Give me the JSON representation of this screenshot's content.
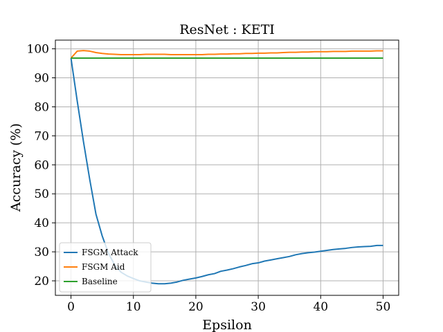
{
  "chart_data": {
    "type": "line",
    "title": "ResNet : KETI",
    "xlabel": "Epsilon",
    "ylabel": "Accuracy (%)",
    "xlim": [
      -2.5,
      52.5
    ],
    "ylim": [
      15,
      103
    ],
    "xticks": [
      0,
      10,
      20,
      30,
      40,
      50
    ],
    "yticks": [
      20,
      30,
      40,
      50,
      60,
      70,
      80,
      90,
      100
    ],
    "grid": true,
    "legend_position": "lower-left",
    "series": [
      {
        "name": "FSGM Attack",
        "color": "#1f77b4",
        "x": [
          0,
          1,
          2,
          3,
          4,
          5,
          6,
          7,
          8,
          9,
          10,
          11,
          12,
          13,
          14,
          15,
          16,
          17,
          18,
          19,
          20,
          21,
          22,
          23,
          24,
          25,
          26,
          27,
          28,
          29,
          30,
          31,
          32,
          33,
          34,
          35,
          36,
          37,
          38,
          39,
          40,
          41,
          42,
          43,
          44,
          45,
          46,
          47,
          48,
          49,
          50
        ],
        "y": [
          96.8,
          82,
          68,
          55,
          43,
          35.5,
          29.5,
          25.5,
          23,
          21.7,
          20.8,
          20,
          19.6,
          19.2,
          19.0,
          19.0,
          19.2,
          19.6,
          20.2,
          20.6,
          21.0,
          21.5,
          22.1,
          22.5,
          23.3,
          23.7,
          24.2,
          24.8,
          25.3,
          25.9,
          26.2,
          26.8,
          27.2,
          27.6,
          28.0,
          28.4,
          29.0,
          29.4,
          29.7,
          29.9,
          30.2,
          30.5,
          30.8,
          31.0,
          31.2,
          31.5,
          31.7,
          31.8,
          31.9,
          32.2,
          32.2
        ]
      },
      {
        "name": "FSGM Aid",
        "color": "#ff7f0e",
        "x": [
          0,
          1,
          2,
          3,
          4,
          5,
          6,
          7,
          8,
          9,
          10,
          11,
          12,
          13,
          14,
          15,
          16,
          17,
          18,
          19,
          20,
          21,
          22,
          23,
          24,
          25,
          26,
          27,
          28,
          29,
          30,
          31,
          32,
          33,
          34,
          35,
          36,
          37,
          38,
          39,
          40,
          41,
          42,
          43,
          44,
          45,
          46,
          47,
          48,
          49,
          50
        ],
        "y": [
          96.8,
          99.2,
          99.4,
          99.2,
          98.7,
          98.4,
          98.2,
          98.1,
          98.0,
          98.0,
          98.0,
          98.0,
          98.1,
          98.1,
          98.1,
          98.1,
          98.0,
          98.0,
          98.0,
          98.0,
          98.0,
          98.0,
          98.1,
          98.1,
          98.2,
          98.2,
          98.3,
          98.3,
          98.4,
          98.4,
          98.5,
          98.5,
          98.6,
          98.6,
          98.7,
          98.8,
          98.8,
          98.9,
          98.9,
          99.0,
          99.0,
          99.0,
          99.1,
          99.1,
          99.1,
          99.2,
          99.2,
          99.2,
          99.2,
          99.3,
          99.3
        ]
      },
      {
        "name": "Baseline",
        "color": "#2ca02c",
        "x": [
          0,
          50
        ],
        "y": [
          96.8,
          96.8
        ]
      }
    ]
  }
}
